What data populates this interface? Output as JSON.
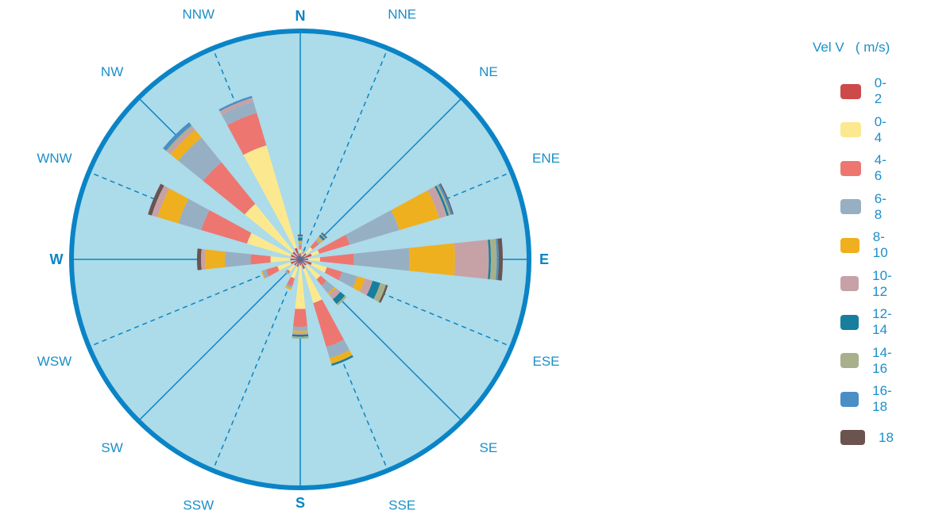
{
  "chart_data": {
    "type": "polar-stacked-bar",
    "title": "",
    "directions": [
      "N",
      "NNE",
      "NE",
      "ENE",
      "E",
      "ESE",
      "SE",
      "SSE",
      "S",
      "SSW",
      "SW",
      "WSW",
      "W",
      "WNW",
      "NW",
      "NNW"
    ],
    "cardinals": [
      "N",
      "E",
      "S",
      "W"
    ],
    "legend_title": "Vel V   ( m/s)",
    "bins": [
      {
        "label": "0-2",
        "color": "#cc4a4a"
      },
      {
        "label": "0-4",
        "color": "#fce98f"
      },
      {
        "label": "4-6",
        "color": "#ee7670"
      },
      {
        "label": "6-8",
        "color": "#97afc3"
      },
      {
        "label": "8-10",
        "color": "#efb01f"
      },
      {
        "label": "10-12",
        "color": "#c6a2a7"
      },
      {
        "label": "12-14",
        "color": "#177e9d"
      },
      {
        "label": "14-16",
        "color": "#a7b08a"
      },
      {
        "label": "16-18",
        "color": "#4a8ec6"
      },
      {
        "label": "18",
        "color": "#6b5350"
      }
    ],
    "sector_width_deg": 12,
    "sectors": [
      {
        "dir_deg": 0,
        "cumulative": [
          3,
          5,
          7,
          8,
          9,
          9.5,
          11,
          11.5,
          12,
          12.5
        ]
      },
      {
        "dir_deg": 22.5,
        "cumulative": [
          1.5,
          3,
          3.5,
          4,
          4.5,
          4.8,
          5,
          5.2,
          5.4,
          5.5
        ]
      },
      {
        "dir_deg": 45,
        "cumulative": [
          4,
          8,
          12,
          13,
          14,
          15,
          16,
          16.5,
          17,
          17.5
        ]
      },
      {
        "dir_deg": 67.5,
        "cumulative": [
          6,
          10,
          26,
          52,
          73,
          77,
          78,
          79,
          80,
          80.5
        ]
      },
      {
        "dir_deg": 90,
        "cumulative": [
          4,
          10,
          27,
          55,
          78,
          95,
          96,
          99,
          100,
          102
        ]
      },
      {
        "dir_deg": 112.5,
        "cumulative": [
          6,
          14,
          22,
          30,
          34,
          38,
          42,
          45,
          45,
          46
        ]
      },
      {
        "dir_deg": 135,
        "cumulative": [
          4,
          13,
          17,
          22,
          23,
          26,
          29,
          30,
          30,
          30
        ]
      },
      {
        "dir_deg": 157.5,
        "cumulative": [
          5,
          23,
          46,
          52,
          55,
          55,
          56,
          56,
          56,
          56
        ]
      },
      {
        "dir_deg": 180,
        "cumulative": [
          3,
          25,
          34,
          36,
          37,
          38,
          39,
          40,
          40,
          40
        ]
      },
      {
        "dir_deg": 202.5,
        "cumulative": [
          4,
          10,
          14,
          15,
          16,
          16,
          16,
          16,
          16,
          16
        ]
      },
      {
        "dir_deg": 225,
        "cumulative": [
          4,
          8,
          9,
          10,
          10,
          10,
          10,
          10,
          10,
          10
        ]
      },
      {
        "dir_deg": 247.5,
        "cumulative": [
          5,
          12,
          18,
          20,
          20.5,
          20.5,
          20.5,
          20.5,
          20.5,
          20.5
        ]
      },
      {
        "dir_deg": 270,
        "cumulative": [
          5,
          15,
          25,
          38,
          48,
          50,
          50,
          50,
          50,
          52
        ]
      },
      {
        "dir_deg": 292.5,
        "cumulative": [
          5,
          28,
          52,
          64,
          75,
          78,
          78,
          78,
          78,
          80
        ]
      },
      {
        "dir_deg": 315,
        "cumulative": [
          5,
          36,
          63,
          79,
          84,
          86,
          86,
          87,
          89,
          89
        ]
      },
      {
        "dir_deg": 337.5,
        "cumulative": [
          6,
          60,
          77,
          83,
          83,
          85,
          85,
          85,
          86,
          86
        ]
      }
    ]
  }
}
